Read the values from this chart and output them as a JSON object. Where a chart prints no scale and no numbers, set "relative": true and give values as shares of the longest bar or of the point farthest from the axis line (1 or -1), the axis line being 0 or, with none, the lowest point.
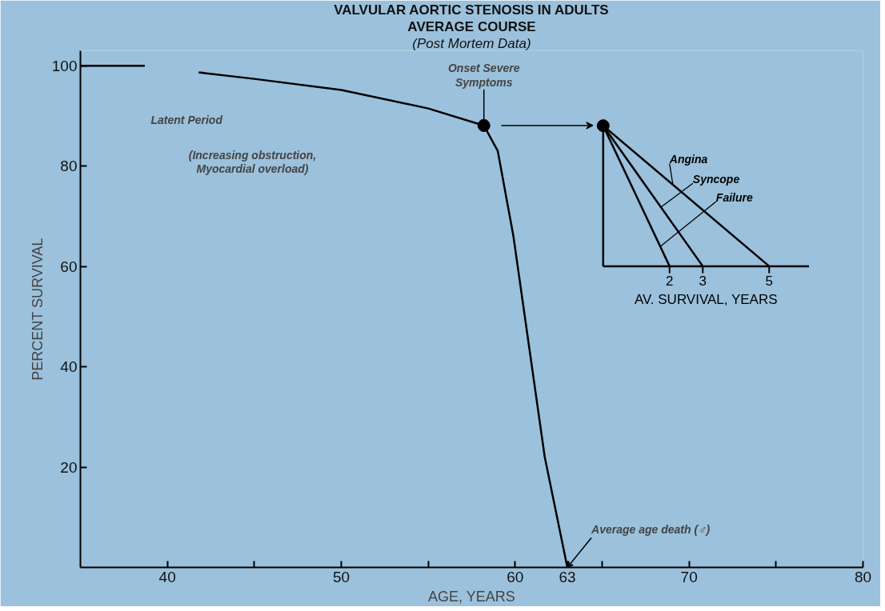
{
  "chart_data": [
    {
      "type": "line",
      "title": "VALVULAR AORTIC STENOSIS IN ADULTS",
      "subtitle": "AVERAGE COURSE",
      "xlabel": "AGE, YEARS",
      "ylabel": "PERCENT SURVIVAL",
      "xlim": [
        35,
        80
      ],
      "ylim": [
        0,
        103
      ],
      "xticks": [
        40,
        {
          "value": 45,
          "label": null
        },
        50,
        {
          "value": 55,
          "label": null
        },
        60,
        63,
        {
          "value": 65,
          "label": null
        },
        70,
        {
          "value": 75,
          "label": null
        },
        80
      ],
      "yticks": [
        20,
        40,
        60,
        80,
        100
      ],
      "grid": false,
      "series": [
        {
          "type": "line",
          "color": "#000000",
          "x": [
            35,
            38.7,
            40,
            41.8,
            45,
            50,
            55,
            58.2,
            59,
            59.9,
            60.8,
            61.7,
            63
          ],
          "values": [
            100,
            100,
            null,
            98.7,
            97.4,
            95.2,
            91.5,
            88.1,
            83,
            66,
            44,
            22,
            0
          ]
        },
        {
          "type": "scatter",
          "marker": "circle",
          "color": "#000000",
          "x": [
            58.2
          ],
          "values": [
            88.1
          ]
        }
      ],
      "annotations": [
        "(Post Mortem Data)",
        "Latent Period",
        "(Increasing obstruction, Myocardial overload)",
        {
          "text": "Onset Severe Symptoms",
          "x": 58.2,
          "y": 88.1
        },
        {
          "text": "Average age death (♂)",
          "x": 63,
          "y": 0
        }
      ]
    },
    {
      "type": "line",
      "relative": true,
      "xlabel": "AV. SURVIVAL, YEARS",
      "xlim": [
        0,
        6.2
      ],
      "xticks": [
        2,
        3,
        5
      ],
      "legend": "top right",
      "series": [
        {
          "name": "Angina",
          "color": "#000000",
          "x": [
            0,
            5
          ],
          "values": [
            1,
            0
          ]
        },
        {
          "name": "Syncope",
          "color": "#000000",
          "x": [
            0,
            3
          ],
          "values": [
            1,
            0
          ]
        },
        {
          "name": "Failure",
          "color": "#000000",
          "x": [
            0,
            2
          ],
          "values": [
            1,
            0
          ]
        },
        {
          "type": "scatter",
          "marker": "circle",
          "color": "#000000",
          "x": [
            0
          ],
          "values": [
            1
          ]
        }
      ]
    }
  ]
}
